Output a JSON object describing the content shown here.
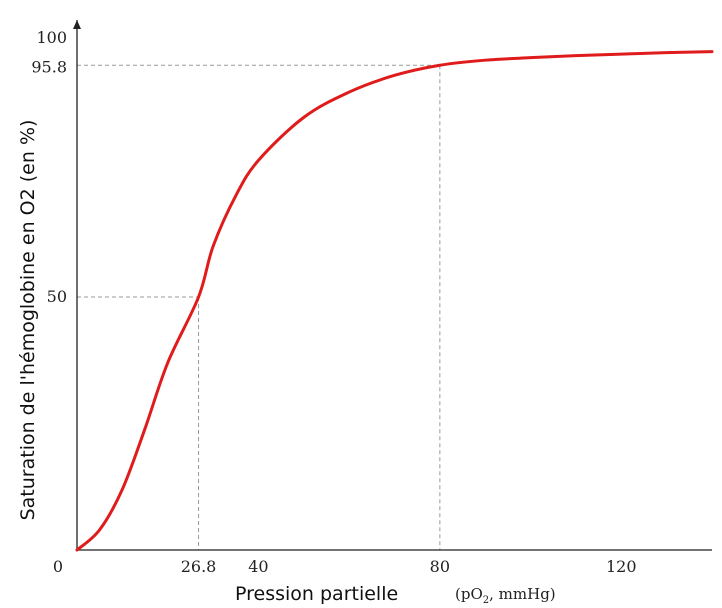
{
  "chart_data": {
    "type": "line",
    "xlabel": "Pression partielle",
    "xlabel_unit": {
      "prefix": "(pO",
      "subscript": "2",
      "suffix": ", mmHg)"
    },
    "ylabel": "Saturation de l'hémoglobine en O2 (en %)",
    "xlim": [
      0,
      140
    ],
    "ylim": [
      0,
      100
    ],
    "x_ticks": [
      {
        "value": 0,
        "label": "0"
      },
      {
        "value": 26.8,
        "label": "26.8"
      },
      {
        "value": 40,
        "label": "40"
      },
      {
        "value": 80,
        "label": "80"
      },
      {
        "value": 120,
        "label": "120"
      }
    ],
    "y_ticks": [
      {
        "value": 50,
        "label": "50"
      },
      {
        "value": 95.8,
        "label": "95.8"
      },
      {
        "value": 100,
        "label": "100"
      }
    ],
    "reference_lines": [
      {
        "x": 26.8,
        "y": 50
      },
      {
        "x": 80,
        "y": 95.8
      }
    ],
    "series": [
      {
        "color": "#e01b1b",
        "x": [
          0,
          5,
          10,
          15,
          20,
          26.8,
          30,
          35,
          40,
          50,
          60,
          70,
          80,
          90,
          100,
          110,
          120,
          130,
          140
        ],
        "y": [
          0,
          4,
          12,
          24,
          37,
          50,
          60,
          70,
          77,
          85.5,
          90.5,
          93.8,
          95.8,
          96.8,
          97.3,
          97.7,
          98.0,
          98.3,
          98.5
        ]
      }
    ],
    "grid": false,
    "legend": "none"
  }
}
